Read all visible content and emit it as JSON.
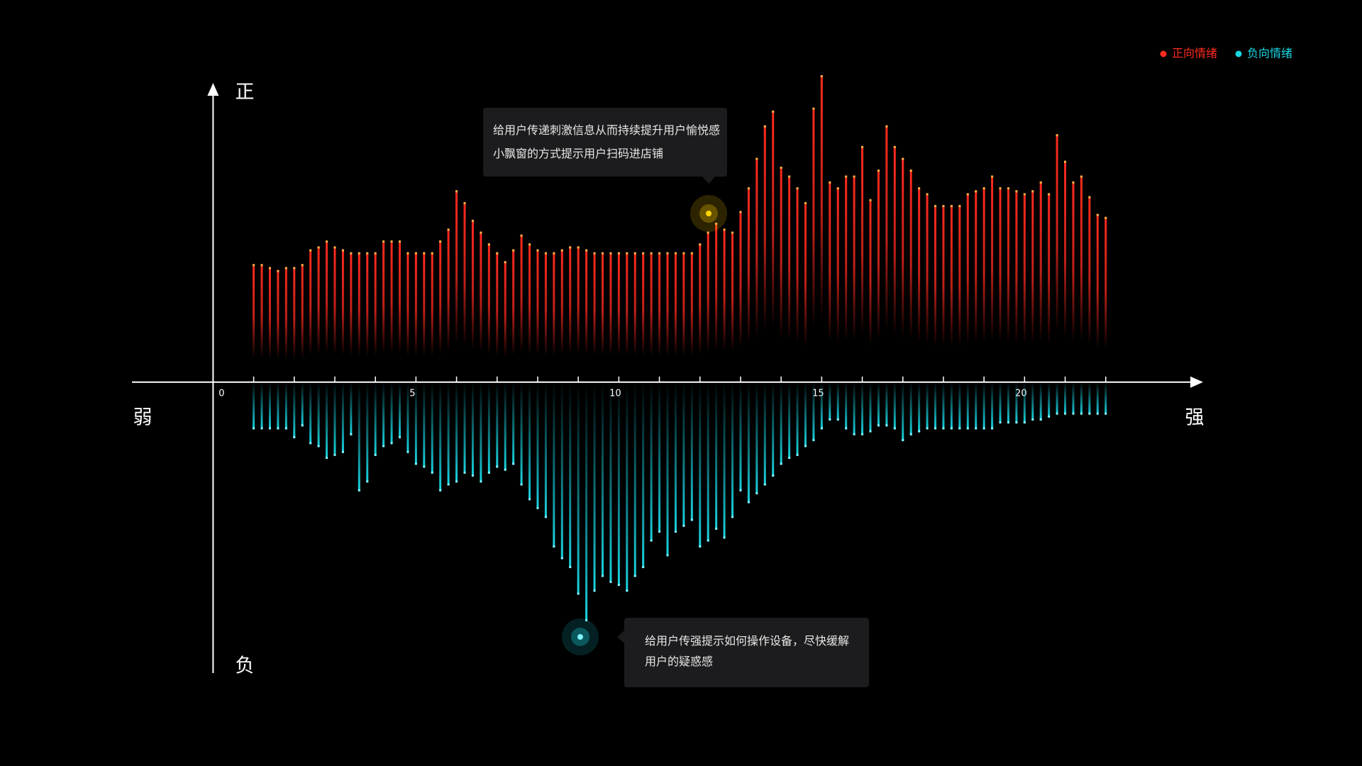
{
  "chart_data": {
    "type": "diverging-bar",
    "axis_labels": {
      "top": "正",
      "bottom": "负",
      "left": "弱",
      "right": "强"
    },
    "legend": "top-right",
    "xlim": [
      -2,
      24.4
    ],
    "xticks": [
      0,
      5,
      10,
      15,
      20
    ],
    "xminorticks": [
      1,
      2,
      3,
      4,
      5,
      6,
      7,
      8,
      9,
      10,
      11,
      12,
      13,
      14,
      15,
      16,
      17,
      18,
      19,
      20,
      21,
      22
    ],
    "ylim": [
      -10,
      11
    ],
    "x": [
      1.0,
      1.2,
      1.4,
      1.6,
      1.8,
      2.0,
      2.2,
      2.4,
      2.6,
      2.8,
      3.0,
      3.2,
      3.4,
      3.6,
      3.8,
      4.0,
      4.2,
      4.4,
      4.6,
      4.8,
      5.0,
      5.2,
      5.4,
      5.6,
      5.8,
      6.0,
      6.2,
      6.4,
      6.6,
      6.8,
      7.0,
      7.2,
      7.4,
      7.6,
      7.8,
      8.0,
      8.2,
      8.4,
      8.6,
      8.8,
      9.0,
      9.2,
      9.4,
      9.6,
      9.8,
      10.0,
      10.2,
      10.4,
      10.6,
      10.8,
      11.0,
      11.2,
      11.4,
      11.6,
      11.8,
      12.0,
      12.2,
      12.4,
      12.6,
      12.8,
      13.0,
      13.2,
      13.4,
      13.6,
      13.8,
      14.0,
      14.2,
      14.4,
      14.6,
      14.8,
      15.0,
      15.2,
      15.4,
      15.6,
      15.8,
      16.0,
      16.2,
      16.4,
      16.6,
      16.8,
      17.0,
      17.2,
      17.4,
      17.6,
      17.8,
      18.0,
      18.2,
      18.4,
      18.6,
      18.8,
      19.0,
      19.2,
      19.4,
      19.6,
      19.8,
      20.0,
      20.2,
      20.4,
      20.6,
      20.8,
      21.0,
      21.2,
      21.4,
      21.6,
      21.8,
      22.0
    ],
    "series": [
      {
        "name": "正向情绪",
        "color": "#ff2a1f",
        "tip_color": "#ffb347",
        "values": [
          4.0,
          4.0,
          3.9,
          3.8,
          3.9,
          3.9,
          4.0,
          4.5,
          4.6,
          4.8,
          4.6,
          4.5,
          4.4,
          4.4,
          4.4,
          4.4,
          4.8,
          4.8,
          4.8,
          4.4,
          4.4,
          4.4,
          4.4,
          4.8,
          5.2,
          6.5,
          6.1,
          5.5,
          5.1,
          4.7,
          4.4,
          4.1,
          4.5,
          5.0,
          4.7,
          4.5,
          4.4,
          4.4,
          4.5,
          4.6,
          4.6,
          4.5,
          4.4,
          4.4,
          4.4,
          4.4,
          4.4,
          4.4,
          4.4,
          4.4,
          4.4,
          4.4,
          4.4,
          4.4,
          4.4,
          4.7,
          5.1,
          5.4,
          5.2,
          5.1,
          5.8,
          6.6,
          7.6,
          8.7,
          9.2,
          7.3,
          7.0,
          6.6,
          6.1,
          9.3,
          10.4,
          6.8,
          6.6,
          7.0,
          7.0,
          8.0,
          6.2,
          7.2,
          8.7,
          8.0,
          7.6,
          7.2,
          6.6,
          6.4,
          6.0,
          6.0,
          6.0,
          6.0,
          6.4,
          6.5,
          6.6,
          7.0,
          6.6,
          6.6,
          6.5,
          6.4,
          6.5,
          6.8,
          6.4,
          8.4,
          7.5,
          6.8,
          7.0,
          6.3,
          5.7,
          5.6
        ]
      },
      {
        "name": "负向情绪",
        "color": "#19d6e3",
        "tip_color": "#7ff5ff",
        "values": [
          -1.6,
          -1.6,
          -1.6,
          -1.6,
          -1.6,
          -1.9,
          -1.5,
          -2.1,
          -2.2,
          -2.6,
          -2.5,
          -2.4,
          -1.8,
          -3.7,
          -3.4,
          -2.5,
          -2.2,
          -2.1,
          -1.9,
          -2.4,
          -2.8,
          -2.9,
          -3.1,
          -3.7,
          -3.5,
          -3.4,
          -3.1,
          -3.2,
          -3.4,
          -3.1,
          -2.9,
          -3.0,
          -2.8,
          -3.5,
          -4.0,
          -4.3,
          -4.6,
          -5.6,
          -6.0,
          -6.3,
          -7.2,
          -8.1,
          -7.1,
          -6.6,
          -6.8,
          -6.9,
          -7.1,
          -6.6,
          -6.3,
          -5.4,
          -5.1,
          -5.9,
          -5.1,
          -4.9,
          -4.7,
          -5.6,
          -5.4,
          -5.0,
          -5.3,
          -4.6,
          -3.7,
          -4.1,
          -3.8,
          -3.5,
          -3.2,
          -2.8,
          -2.6,
          -2.5,
          -2.2,
          -2.0,
          -1.6,
          -1.3,
          -1.3,
          -1.6,
          -1.8,
          -1.8,
          -1.7,
          -1.5,
          -1.5,
          -1.6,
          -2.0,
          -1.8,
          -1.7,
          -1.6,
          -1.6,
          -1.6,
          -1.6,
          -1.6,
          -1.6,
          -1.6,
          -1.6,
          -1.6,
          -1.4,
          -1.4,
          -1.4,
          -1.4,
          -1.3,
          -1.3,
          -1.2,
          -1.1,
          -1.1,
          -1.1,
          -1.1,
          -1.1,
          -1.1,
          -1.1
        ]
      }
    ],
    "annotations": [
      [
        "给用户传递刺激信息从而持续提升用户愉悦感",
        "小飘窗的方式提示用户扫码进店铺"
      ],
      [
        "给用户传强提示如何操作设备，尽快缓解",
        "用户的疑惑感"
      ]
    ]
  }
}
